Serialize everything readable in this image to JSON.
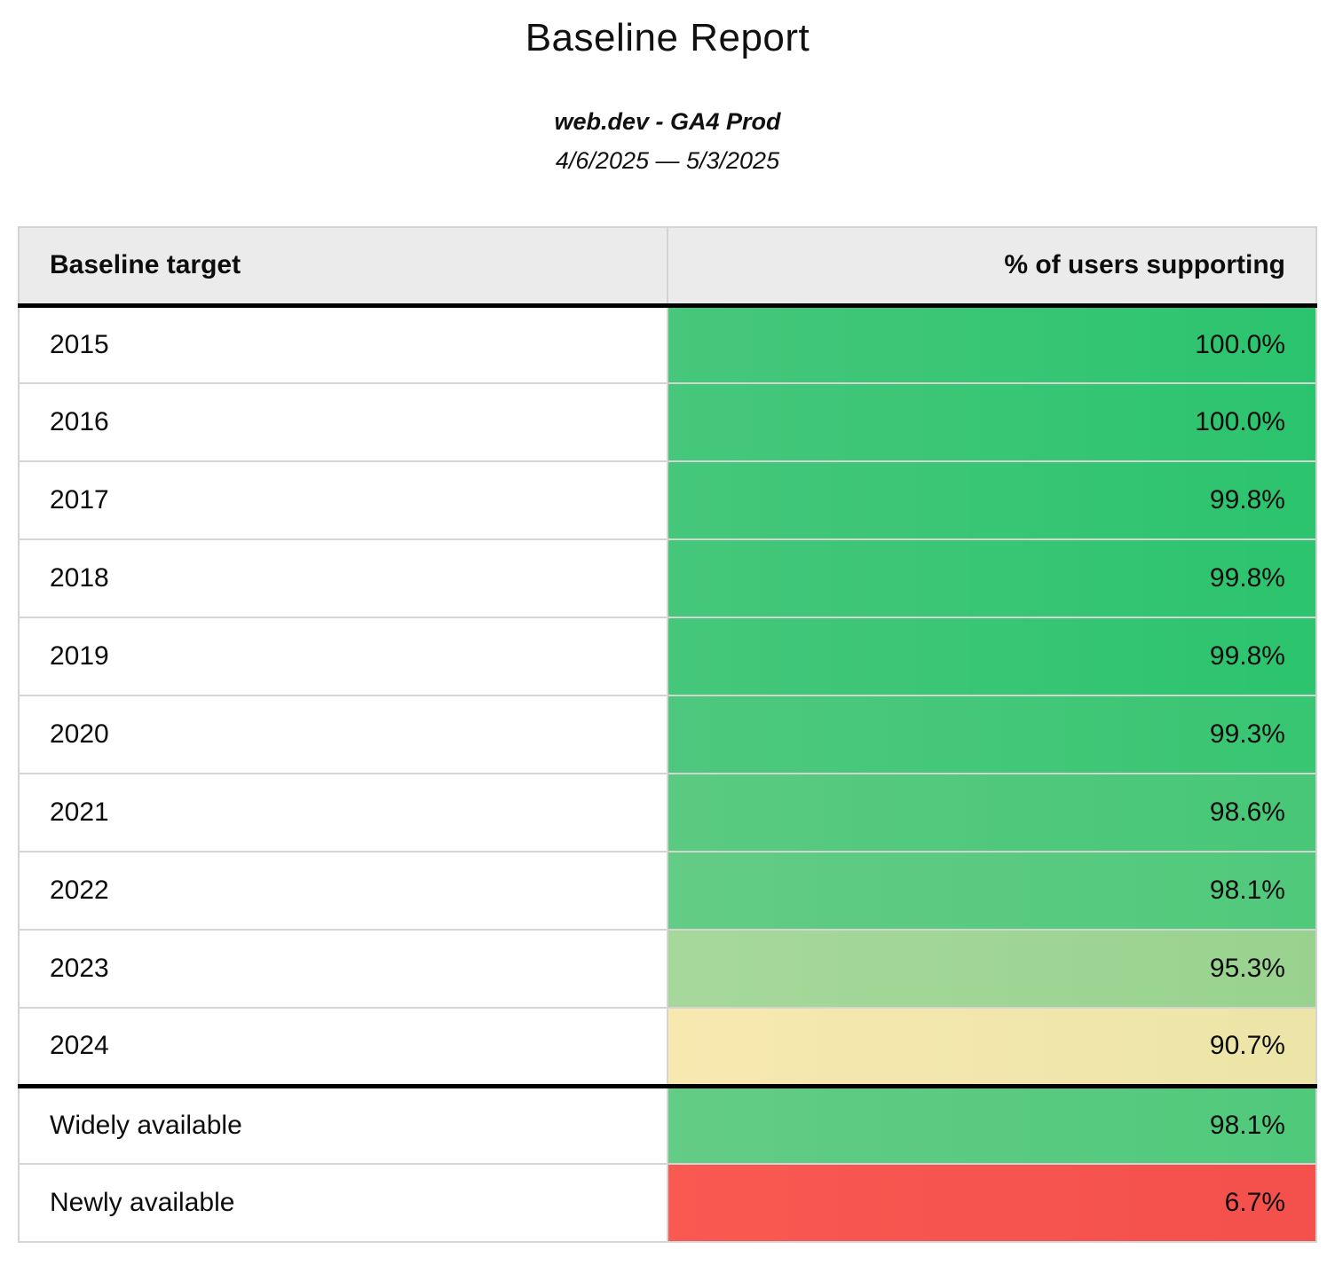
{
  "page": {
    "title": "Baseline Report",
    "subtitle": "web.dev - GA4 Prod",
    "date_range": "4/6/2025 — 5/3/2025"
  },
  "table": {
    "columns": [
      {
        "id": "target",
        "label": "Baseline target"
      },
      {
        "id": "support",
        "label": "% of users supporting"
      }
    ],
    "rows": [
      {
        "group": "yearly",
        "target": "2015",
        "value": "100.0%",
        "color_left": "#46c77b",
        "color_right": "#2bc46e"
      },
      {
        "group": "yearly",
        "target": "2016",
        "value": "100.0%",
        "color_left": "#46c77b",
        "color_right": "#2bc46e"
      },
      {
        "group": "yearly",
        "target": "2017",
        "value": "99.8%",
        "color_left": "#45c77a",
        "color_right": "#2cc46e"
      },
      {
        "group": "yearly",
        "target": "2018",
        "value": "99.8%",
        "color_left": "#45c77a",
        "color_right": "#2cc46e"
      },
      {
        "group": "yearly",
        "target": "2019",
        "value": "99.8%",
        "color_left": "#45c77a",
        "color_right": "#2cc46e"
      },
      {
        "group": "yearly",
        "target": "2020",
        "value": "99.3%",
        "color_left": "#4ec87e",
        "color_right": "#38c672"
      },
      {
        "group": "yearly",
        "target": "2021",
        "value": "98.6%",
        "color_left": "#5aca81",
        "color_right": "#47c777"
      },
      {
        "group": "yearly",
        "target": "2022",
        "value": "98.1%",
        "color_left": "#63cc85",
        "color_right": "#50c97b"
      },
      {
        "group": "yearly",
        "target": "2023",
        "value": "95.3%",
        "color_left": "#a6d89b",
        "color_right": "#99d28f"
      },
      {
        "group": "yearly",
        "target": "2024",
        "value": "90.7%",
        "color_left": "#f7e8b0",
        "color_right": "#ece5a7"
      },
      {
        "group": "summary",
        "target": "Widely available",
        "value": "98.1%",
        "color_left": "#63cc85",
        "color_right": "#50c97b"
      },
      {
        "group": "summary",
        "target": "Newly available",
        "value": "6.7%",
        "color_left": "#f85951",
        "color_right": "#f4504c"
      }
    ]
  },
  "colors": {
    "header_background": "#ebebeb",
    "thin_border": "#d4d4d4",
    "thick_border": "#000000",
    "scale_high_green": "#2bc46e",
    "scale_mid_yellow": "#f0e6aa",
    "scale_low_red": "#f6544e"
  },
  "chart_data": {
    "type": "table",
    "title": "Baseline Report",
    "subtitle": "web.dev - GA4 Prod",
    "date_range": "4/6/2025 — 5/3/2025",
    "columns": [
      "Baseline target",
      "% of users supporting"
    ],
    "categories": [
      "2015",
      "2016",
      "2017",
      "2018",
      "2019",
      "2020",
      "2021",
      "2022",
      "2023",
      "2024",
      "Widely available",
      "Newly available"
    ],
    "values": [
      100.0,
      100.0,
      99.8,
      99.8,
      99.8,
      99.3,
      98.6,
      98.1,
      95.3,
      90.7,
      98.1,
      6.7
    ],
    "value_unit": "%",
    "layout_hints": "percent column uses green-yellow-red color scale by value; thick black rule under header and between 2024 and summary rows"
  }
}
